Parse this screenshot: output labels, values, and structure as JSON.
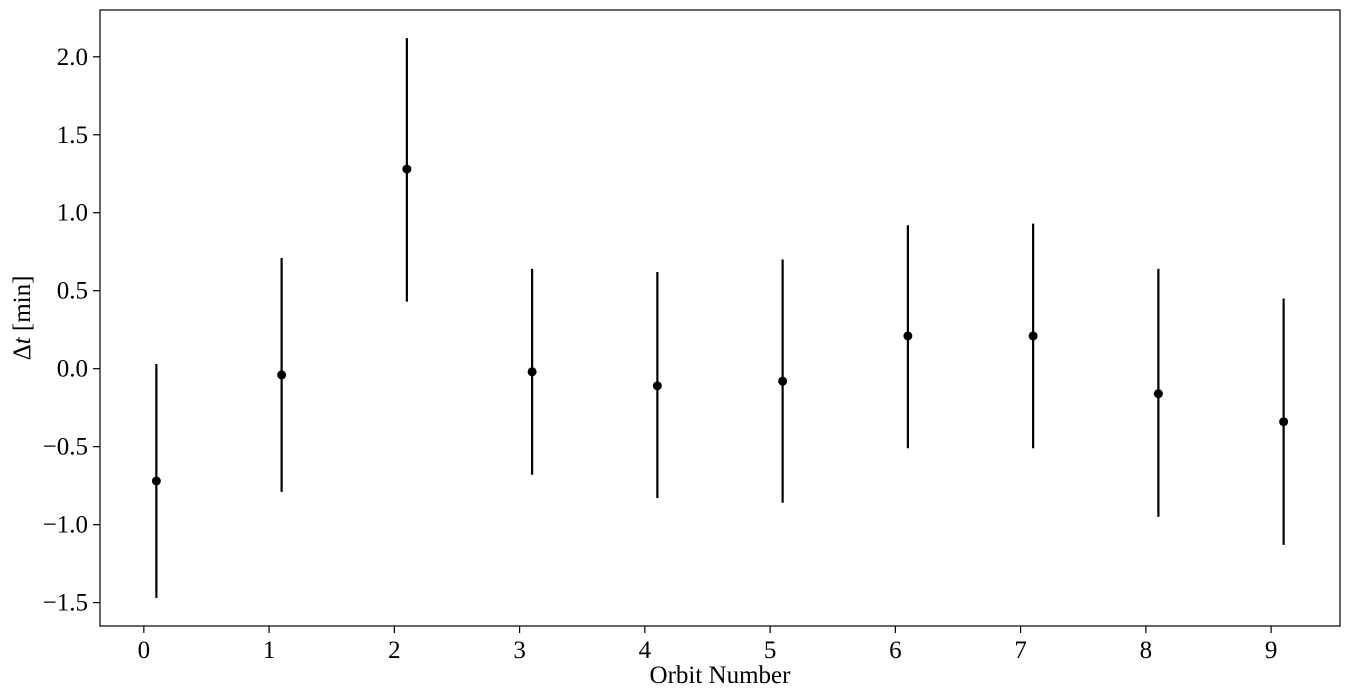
{
  "chart_data": {
    "type": "scatter",
    "title": "",
    "xlabel": "Orbit Number",
    "ylabel_main": "Δ",
    "ylabel_var": "t",
    "ylabel_unit": " [min]",
    "xlim": [
      -0.35,
      9.55
    ],
    "ylim": [
      -1.65,
      2.3
    ],
    "xticks": [
      0,
      1,
      2,
      3,
      4,
      5,
      6,
      7,
      8,
      9
    ],
    "xtick_labels": [
      "0",
      "1",
      "2",
      "3",
      "4",
      "5",
      "6",
      "7",
      "8",
      "9"
    ],
    "yticks": [
      -1.5,
      -1.0,
      -0.5,
      0.0,
      0.5,
      1.0,
      1.5,
      2.0
    ],
    "ytick_labels": [
      "−1.5",
      "−1.0",
      "−0.5",
      "0.0",
      "0.5",
      "1.0",
      "1.5",
      "2.0"
    ],
    "grid": false,
    "series": [
      {
        "color": "#000000",
        "marker": "circle",
        "x": [
          0.1,
          1.1,
          2.1,
          3.1,
          4.1,
          5.1,
          6.1,
          7.1,
          8.1,
          9.1
        ],
        "y": [
          -0.72,
          -0.04,
          1.28,
          -0.02,
          -0.11,
          -0.08,
          0.21,
          0.21,
          -0.16,
          -0.34
        ],
        "yerr_low": [
          -1.47,
          -0.79,
          0.43,
          -0.68,
          -0.83,
          -0.86,
          -0.51,
          -0.51,
          -0.95,
          -1.13
        ],
        "yerr_high": [
          0.03,
          0.71,
          2.12,
          0.64,
          0.62,
          0.7,
          0.92,
          0.93,
          0.64,
          0.45
        ]
      }
    ]
  }
}
